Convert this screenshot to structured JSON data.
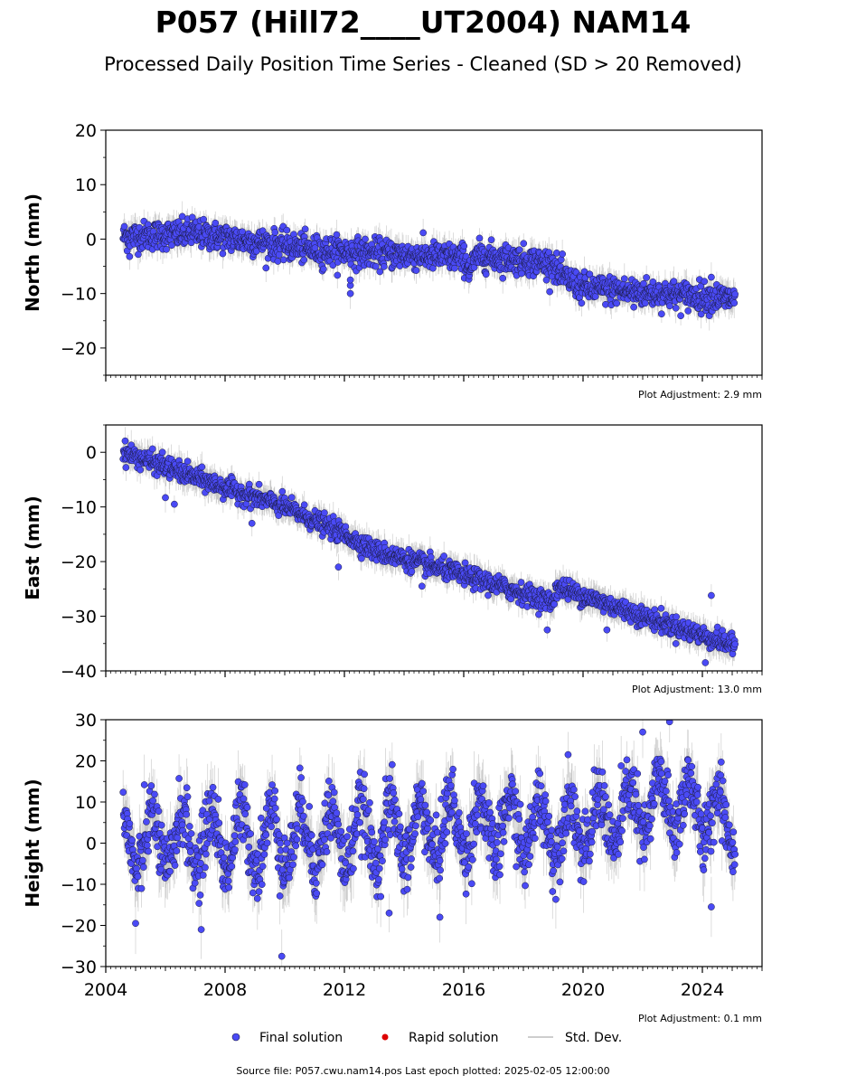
{
  "title": "P057 (Hill72____UT2004) NAM14",
  "subtitle": "Processed Daily Position Time Series - Cleaned (SD > 20 Removed)",
  "source_note": "Source file: P057.cwu.nam14.pos  Last epoch plotted: 2025-02-05 12:00:00",
  "colors": {
    "final": "#4a4af5",
    "rapid": "#dd0000",
    "stddev": "#b0b0b0",
    "marker_edge": "#1a1a40"
  },
  "legend": [
    {
      "key": "final",
      "label": "Final solution"
    },
    {
      "key": "rapid",
      "label": "Rapid solution"
    },
    {
      "key": "stddev",
      "label": "Std. Dev."
    }
  ],
  "chart_data": [
    {
      "type": "scatter",
      "ylabel": "North (mm)",
      "ylim": [
        -25,
        20
      ],
      "yticks": [
        -20,
        -10,
        0,
        10,
        20
      ],
      "xlim": [
        "2004-01-01",
        "2026-01-01"
      ],
      "xtick_years": [
        2004,
        2008,
        2012,
        2016,
        2020,
        2024
      ],
      "xtick_labels_shown": false,
      "adjustment": "Plot Adjustment: 2.9 mm",
      "series": [
        {
          "name": "Final solution",
          "date_range": [
            "2004-08-01",
            "2025-02-05"
          ],
          "trend_knots": [
            [
              2004.6,
              0.5
            ],
            [
              2007.0,
              1.0
            ],
            [
              2011.0,
              -2.0
            ],
            [
              2016.0,
              -3.5
            ],
            [
              2016.2,
              -5.5
            ],
            [
              2016.5,
              -3.0
            ],
            [
              2019.0,
              -4.5
            ],
            [
              2019.2,
              -6.5
            ],
            [
              2020.0,
              -9.0
            ],
            [
              2025.1,
              -11.0
            ]
          ],
          "scatter_sd": 1.3,
          "outliers": [
            [
              2004.8,
              -3.2
            ],
            [
              2011.3,
              -5.5
            ],
            [
              2012.2,
              -10.0
            ],
            [
              2012.2,
              -8.5
            ],
            [
              2012.2,
              -7.5
            ],
            [
              2006.9,
              4.0
            ],
            [
              2021.7,
              -12.5
            ],
            [
              2024.3,
              -7.0
            ]
          ]
        }
      ]
    },
    {
      "type": "scatter",
      "ylabel": "East (mm)",
      "ylim": [
        -40,
        5
      ],
      "yticks": [
        -40,
        -30,
        -20,
        -10,
        0
      ],
      "xlim": [
        "2004-01-01",
        "2026-01-01"
      ],
      "xtick_years": [
        2004,
        2008,
        2012,
        2016,
        2020,
        2024
      ],
      "xtick_labels_shown": false,
      "adjustment": "Plot Adjustment: 13.0 mm",
      "series": [
        {
          "name": "Final solution",
          "date_range": [
            "2004-08-01",
            "2025-02-05"
          ],
          "trend_knots": [
            [
              2004.6,
              0.0
            ],
            [
              2008.0,
              -6.5
            ],
            [
              2010.0,
              -10.0
            ],
            [
              2012.0,
              -15.0
            ],
            [
              2013.0,
              -18.0
            ],
            [
              2016.0,
              -22.5
            ],
            [
              2019.0,
              -27.5
            ],
            [
              2019.1,
              -24.5
            ],
            [
              2022.0,
              -30.0
            ],
            [
              2025.1,
              -35.5
            ]
          ],
          "scatter_sd": 0.9,
          "outliers": [
            [
              2005.9,
              0.0
            ],
            [
              2006.3,
              -9.5
            ],
            [
              2006.0,
              -8.3
            ],
            [
              2008.9,
              -13.0
            ],
            [
              2011.8,
              -21.0
            ],
            [
              2014.6,
              -24.5
            ],
            [
              2018.8,
              -32.5
            ],
            [
              2024.3,
              -26.2
            ],
            [
              2024.1,
              -38.5
            ],
            [
              2020.8,
              -32.5
            ]
          ]
        }
      ]
    },
    {
      "type": "scatter",
      "ylabel": "Height (mm)",
      "ylim": [
        -30,
        30
      ],
      "yticks": [
        -30,
        -20,
        -10,
        0,
        10,
        20,
        30
      ],
      "xlim": [
        "2004-01-01",
        "2026-01-01"
      ],
      "xtick_years": [
        2004,
        2008,
        2012,
        2016,
        2020,
        2024
      ],
      "xtick_labels_shown": true,
      "adjustment": "Plot Adjustment: 0.1 mm",
      "series": [
        {
          "name": "Final solution",
          "date_range": [
            "2004-08-01",
            "2025-02-05"
          ],
          "trend_knots": [
            [
              2004.6,
              0.0
            ],
            [
              2012.0,
              1.5
            ],
            [
              2016.0,
              4.0
            ],
            [
              2020.0,
              4.0
            ],
            [
              2023.0,
              10.0
            ],
            [
              2025.1,
              5.0
            ]
          ],
          "seasonal_amplitude_mm": 7,
          "scatter_sd": 4.0,
          "outliers": [
            [
              2009.9,
              -27.5
            ],
            [
              2007.2,
              -21.0
            ],
            [
              2005.0,
              -19.5
            ],
            [
              2022.9,
              29.5
            ],
            [
              2015.2,
              -18.0
            ],
            [
              2024.3,
              -15.5
            ],
            [
              2022.0,
              27.0
            ],
            [
              2013.5,
              -17.0
            ]
          ]
        }
      ]
    }
  ]
}
